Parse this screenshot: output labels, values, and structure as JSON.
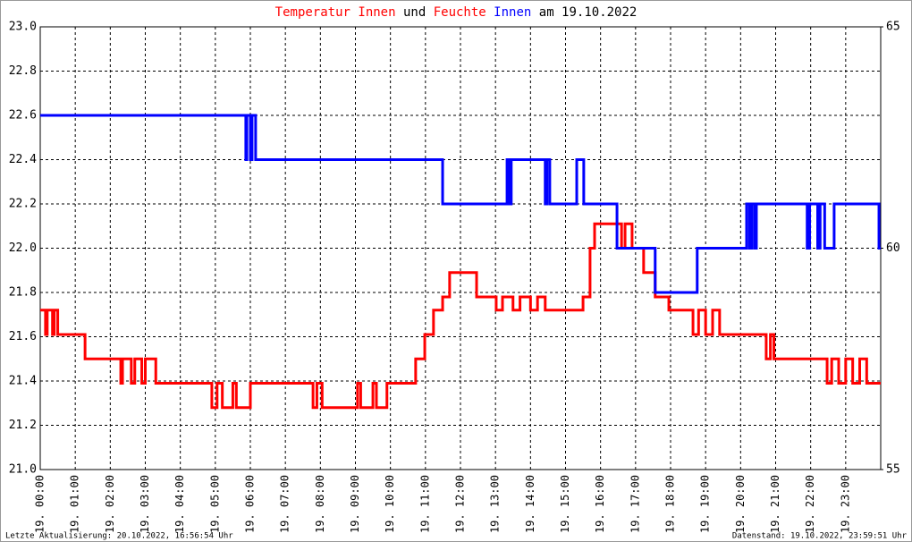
{
  "chart_data": {
    "type": "line",
    "title_parts": [
      {
        "text": "Temperatur",
        "color": "#ff0000"
      },
      {
        "text": "Innen",
        "color": "#ff0000"
      },
      {
        "text": "und",
        "color": "#000000"
      },
      {
        "text": "Feuchte",
        "color": "#ff0000"
      },
      {
        "text": "Innen",
        "color": "#0000ff"
      },
      {
        "text": "am 19.10.2022",
        "color": "#000000"
      }
    ],
    "xlim": [
      0,
      24
    ],
    "xticks": [
      {
        "value": 0,
        "label": "19. 00:00"
      },
      {
        "value": 1,
        "label": "19. 01:00"
      },
      {
        "value": 2,
        "label": "19. 02:00"
      },
      {
        "value": 3,
        "label": "19. 03:00"
      },
      {
        "value": 4,
        "label": "19. 04:00"
      },
      {
        "value": 5,
        "label": "19. 05:00"
      },
      {
        "value": 6,
        "label": "19. 06:00"
      },
      {
        "value": 7,
        "label": "19. 07:00"
      },
      {
        "value": 8,
        "label": "19. 08:00"
      },
      {
        "value": 9,
        "label": "19. 09:00"
      },
      {
        "value": 10,
        "label": "19. 10:00"
      },
      {
        "value": 11,
        "label": "19. 11:00"
      },
      {
        "value": 12,
        "label": "19. 12:00"
      },
      {
        "value": 13,
        "label": "19. 13:00"
      },
      {
        "value": 14,
        "label": "19. 14:00"
      },
      {
        "value": 15,
        "label": "19. 15:00"
      },
      {
        "value": 16,
        "label": "19. 16:00"
      },
      {
        "value": 17,
        "label": "19. 17:00"
      },
      {
        "value": 18,
        "label": "19. 18:00"
      },
      {
        "value": 19,
        "label": "19. 19:00"
      },
      {
        "value": 20,
        "label": "19. 20:00"
      },
      {
        "value": 21,
        "label": "19. 21:00"
      },
      {
        "value": 22,
        "label": "19. 22:00"
      },
      {
        "value": 23,
        "label": "19. 23:00"
      }
    ],
    "ylim": [
      21,
      23
    ],
    "yticks": [
      {
        "value": 21,
        "label": "21.0"
      },
      21.2,
      21.4,
      21.6,
      21.8,
      {
        "value": 22,
        "label": "22.0"
      },
      22.2,
      22.4,
      22.6,
      22.8,
      {
        "value": 23,
        "label": "23.0"
      }
    ],
    "y2lim": [
      55,
      65
    ],
    "y2ticks": [
      55,
      60,
      65
    ],
    "grid": true,
    "series": [
      {
        "color": "#ff0000",
        "axis": "y",
        "x": [
          0,
          0.15,
          0.15,
          0.2,
          0.2,
          0.35,
          0.35,
          0.4,
          0.4,
          0.5,
          0.5,
          1.28,
          1.28,
          2.3,
          2.3,
          2.35,
          2.35,
          2.6,
          2.6,
          2.7,
          2.7,
          2.9,
          2.9,
          3.0,
          3.0,
          3.3,
          3.3,
          4.9,
          4.9,
          5.05,
          5.05,
          5.2,
          5.2,
          5.5,
          5.5,
          5.6,
          5.6,
          6.0,
          6.0,
          7.79,
          7.79,
          7.9,
          7.9,
          8.05,
          8.05,
          9.06,
          9.06,
          9.15,
          9.15,
          9.5,
          9.5,
          9.6,
          9.6,
          9.9,
          9.9,
          10.72,
          10.72,
          10.98,
          10.98,
          11.23,
          11.23,
          11.49,
          11.49,
          11.69,
          11.69,
          12.46,
          12.46,
          13.02,
          13.02,
          13.2,
          13.2,
          13.5,
          13.5,
          13.7,
          13.7,
          14.0,
          14.0,
          14.2,
          14.2,
          14.42,
          14.42,
          15.5,
          15.5,
          15.7,
          15.7,
          15.83,
          15.83,
          16.6,
          16.6,
          16.7,
          16.7,
          16.9,
          16.9,
          17.23,
          17.23,
          17.56,
          17.56,
          17.95,
          17.95,
          18.64,
          18.64,
          18.8,
          18.8,
          19.0,
          19.0,
          19.2,
          19.2,
          19.4,
          19.4,
          20.73,
          20.73,
          20.85,
          20.85,
          20.95,
          20.95,
          22.47,
          22.47,
          22.6,
          22.6,
          22.8,
          22.8,
          23.0,
          23.0,
          23.2,
          23.2,
          23.4,
          23.4,
          23.6,
          23.6,
          24.0
        ],
        "values": [
          21.72,
          21.72,
          21.61,
          21.61,
          21.72,
          21.72,
          21.61,
          21.61,
          21.72,
          21.72,
          21.61,
          21.61,
          21.5,
          21.5,
          21.39,
          21.39,
          21.5,
          21.5,
          21.39,
          21.39,
          21.5,
          21.5,
          21.39,
          21.39,
          21.5,
          21.5,
          21.39,
          21.39,
          21.28,
          21.28,
          21.39,
          21.39,
          21.28,
          21.28,
          21.39,
          21.39,
          21.28,
          21.28,
          21.39,
          21.39,
          21.28,
          21.28,
          21.39,
          21.39,
          21.28,
          21.28,
          21.39,
          21.39,
          21.28,
          21.28,
          21.39,
          21.39,
          21.28,
          21.28,
          21.39,
          21.39,
          21.5,
          21.5,
          21.61,
          21.61,
          21.72,
          21.72,
          21.78,
          21.78,
          21.89,
          21.89,
          21.78,
          21.78,
          21.72,
          21.72,
          21.78,
          21.78,
          21.72,
          21.72,
          21.78,
          21.78,
          21.72,
          21.72,
          21.78,
          21.78,
          21.72,
          21.72,
          21.78,
          21.78,
          22.0,
          22.0,
          22.11,
          22.11,
          22.0,
          22.0,
          22.11,
          22.11,
          22.0,
          22.0,
          21.89,
          21.89,
          21.78,
          21.78,
          21.72,
          21.72,
          21.61,
          21.61,
          21.72,
          21.72,
          21.61,
          21.61,
          21.72,
          21.72,
          21.61,
          21.61,
          21.5,
          21.5,
          21.61,
          21.61,
          21.5,
          21.5,
          21.39,
          21.39,
          21.5,
          21.5,
          21.39,
          21.39,
          21.5,
          21.5,
          21.39,
          21.39,
          21.5,
          21.5,
          21.39,
          21.39
        ]
      },
      {
        "color": "#0000ff",
        "axis": "y2",
        "x": [
          0,
          5.87,
          5.87,
          5.9,
          5.9,
          6.0,
          6.0,
          6.05,
          6.05,
          6.15,
          6.15,
          11.49,
          11.49,
          13.33,
          13.33,
          13.38,
          13.38,
          13.45,
          13.45,
          14.42,
          14.42,
          14.47,
          14.47,
          14.55,
          14.55,
          15.32,
          15.32,
          15.52,
          15.52,
          16.47,
          16.47,
          17.56,
          17.56,
          18.76,
          18.76,
          20.17,
          20.17,
          20.25,
          20.25,
          20.32,
          20.32,
          20.4,
          20.4,
          20.45,
          20.45,
          21.9,
          21.9,
          21.97,
          21.97,
          22.2,
          22.2,
          22.27,
          22.27,
          22.4,
          22.4,
          22.67,
          22.67,
          23.95,
          23.95,
          24
        ],
        "values": [
          63,
          63,
          62,
          62,
          63,
          63,
          62,
          62,
          63,
          63,
          62,
          62,
          61,
          61,
          62,
          62,
          61,
          61,
          62,
          62,
          61,
          61,
          62,
          62,
          61,
          61,
          62,
          62,
          61,
          61,
          60,
          60,
          59,
          59,
          60,
          60,
          61,
          61,
          60,
          60,
          61,
          61,
          60,
          60,
          61,
          61,
          60,
          60,
          61,
          61,
          60,
          60,
          61,
          61,
          60,
          60,
          61,
          61,
          60,
          60
        ]
      }
    ],
    "footer_left": "Letzte Aktualisierung: 20.10.2022, 16:56:54 Uhr",
    "footer_right": "Datenstand: 19.10.2022, 23:59:51 Uhr"
  }
}
